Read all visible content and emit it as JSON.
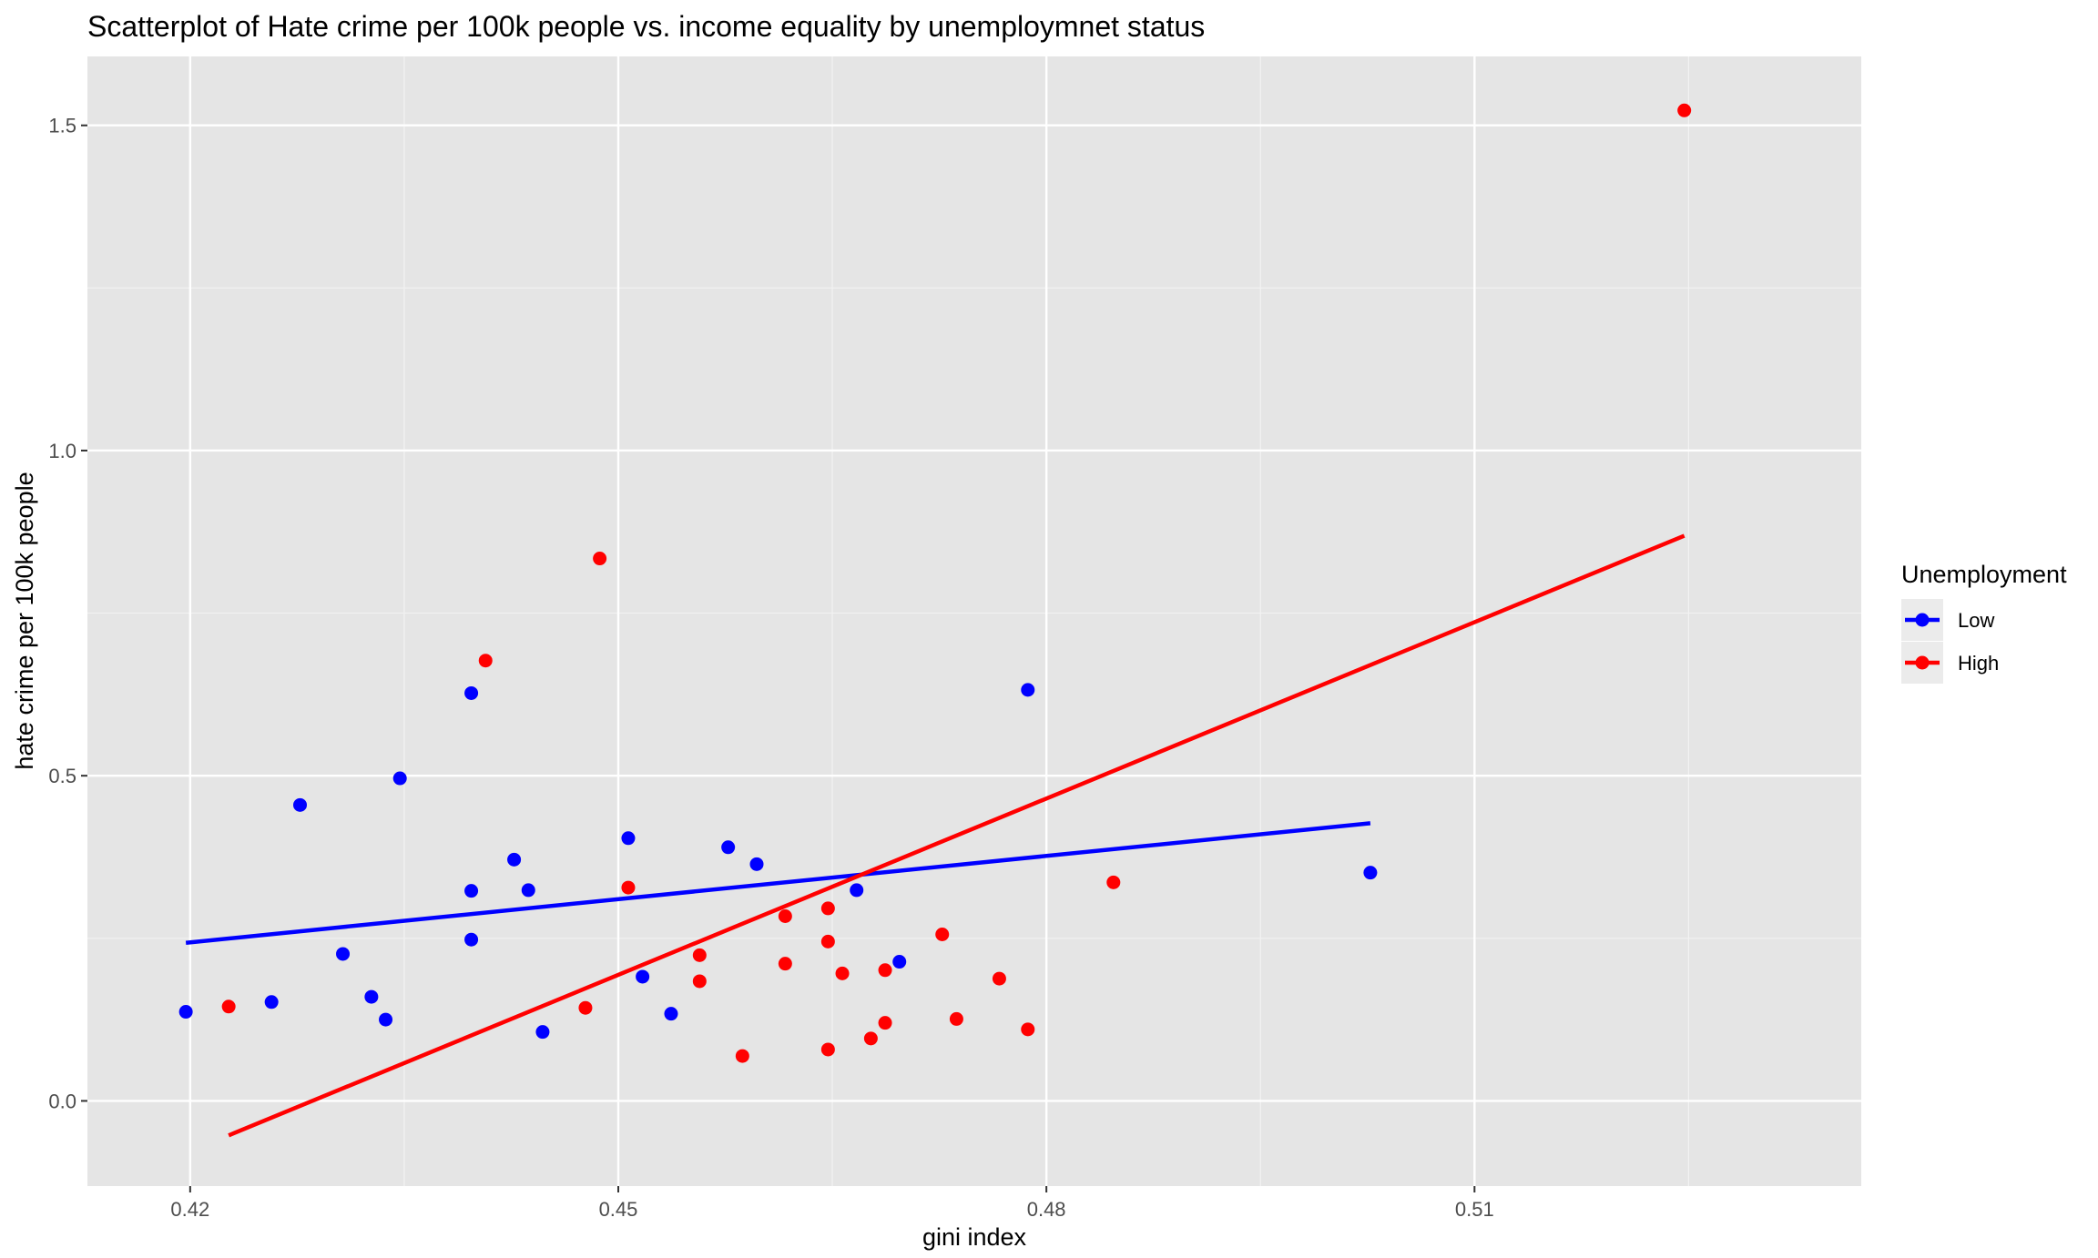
{
  "chart_data": {
    "type": "scatter",
    "title": "Scatterplot of Hate crime per 100k people vs. income equality by unemploymnet status",
    "xlabel": "gini index",
    "ylabel": "hate crime per 100k people",
    "xlim": [
      0.4128,
      0.5371
    ],
    "ylim": [
      -0.131,
      1.606
    ],
    "x_ticks": [
      0.42,
      0.45,
      0.48,
      0.51
    ],
    "x_tick_labels": [
      "0.42",
      "0.45",
      "0.48",
      "0.51"
    ],
    "y_ticks": [
      0.0,
      0.5,
      1.0,
      1.5
    ],
    "y_tick_labels": [
      "0.0",
      "0.5",
      "1.0",
      "1.5"
    ],
    "grid": true,
    "legend": {
      "title": "Unemployment",
      "placement": "right"
    },
    "series": [
      {
        "name": "Low",
        "color": "#0000ff",
        "points": [
          [
            0.4197,
            0.137
          ],
          [
            0.4257,
            0.152
          ],
          [
            0.4277,
            0.455
          ],
          [
            0.4307,
            0.226
          ],
          [
            0.4327,
            0.16
          ],
          [
            0.4337,
            0.125
          ],
          [
            0.4347,
            0.496
          ],
          [
            0.4397,
            0.627
          ],
          [
            0.4397,
            0.323
          ],
          [
            0.4397,
            0.248
          ],
          [
            0.4427,
            0.371
          ],
          [
            0.4437,
            0.324
          ],
          [
            0.4447,
            0.106
          ],
          [
            0.4507,
            0.404
          ],
          [
            0.4517,
            0.191
          ],
          [
            0.4537,
            0.134
          ],
          [
            0.4577,
            0.39
          ],
          [
            0.4597,
            0.364
          ],
          [
            0.4667,
            0.324
          ],
          [
            0.4697,
            0.214
          ],
          [
            0.4787,
            0.632
          ],
          [
            0.5027,
            0.351
          ]
        ],
        "trend": {
          "x": [
            0.4197,
            0.5027
          ],
          "y": [
            0.243,
            0.427
          ]
        }
      },
      {
        "name": "High",
        "color": "#ff0000",
        "points": [
          [
            0.4227,
            0.145
          ],
          [
            0.4407,
            0.677
          ],
          [
            0.4477,
            0.143
          ],
          [
            0.4487,
            0.834
          ],
          [
            0.4507,
            0.328
          ],
          [
            0.4557,
            0.224
          ],
          [
            0.4557,
            0.184
          ],
          [
            0.4587,
            0.069
          ],
          [
            0.4617,
            0.284
          ],
          [
            0.4617,
            0.211
          ],
          [
            0.4647,
            0.296
          ],
          [
            0.4647,
            0.245
          ],
          [
            0.4647,
            0.079
          ],
          [
            0.4657,
            0.196
          ],
          [
            0.4677,
            0.096
          ],
          [
            0.4687,
            0.201
          ],
          [
            0.4687,
            0.12
          ],
          [
            0.4727,
            0.256
          ],
          [
            0.4737,
            0.126
          ],
          [
            0.4767,
            0.188
          ],
          [
            0.4787,
            0.11
          ],
          [
            0.4847,
            0.336
          ],
          [
            0.5247,
            1.523
          ]
        ],
        "trend": {
          "x": [
            0.4227,
            0.5247
          ],
          "y": [
            -0.053,
            0.869
          ]
        }
      }
    ]
  }
}
